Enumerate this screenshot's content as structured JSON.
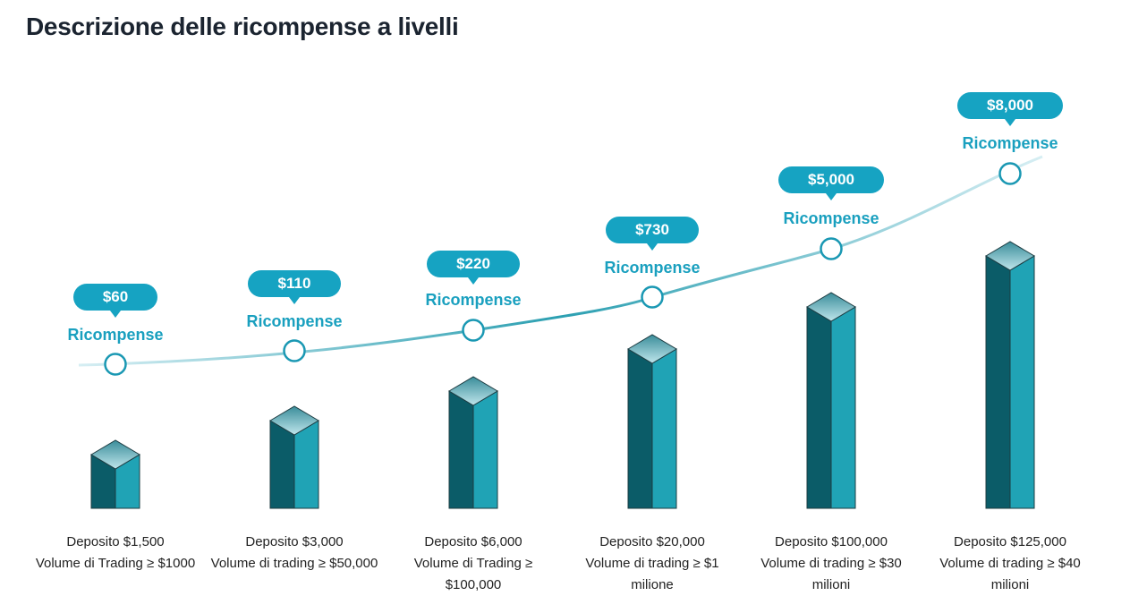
{
  "title": "Descrizione delle ricompense a livelli",
  "colors": {
    "accent": "#16a3c2",
    "bar_dark": "#0b5c68",
    "bar_light": "#20a3b5"
  },
  "tiers": [
    {
      "reward": "$60",
      "reward_label": "Ricompense",
      "lines": [
        "Deposito $1,500",
        "Volume di Trading ≥ $1000"
      ]
    },
    {
      "reward": "$110",
      "reward_label": "Ricompense",
      "lines": [
        "Deposito $3,000",
        "Volume di trading ≥ $50,000"
      ]
    },
    {
      "reward": "$220",
      "reward_label": "Ricompense",
      "lines": [
        "Deposito $6,000",
        "Volume di Trading ≥",
        "$100,000"
      ]
    },
    {
      "reward": "$730",
      "reward_label": "Ricompense",
      "lines": [
        "Deposito $20,000",
        "Volume di trading ≥ $1",
        "milione"
      ]
    },
    {
      "reward": "$5,000",
      "reward_label": "Ricompense",
      "lines": [
        "Deposito $100,000",
        "Volume di trading ≥ $30",
        "milioni"
      ]
    },
    {
      "reward": "$8,000",
      "reward_label": "Ricompense",
      "lines": [
        "Deposito $125,000",
        "Volume di trading ≥ $40",
        "milioni"
      ]
    }
  ]
}
